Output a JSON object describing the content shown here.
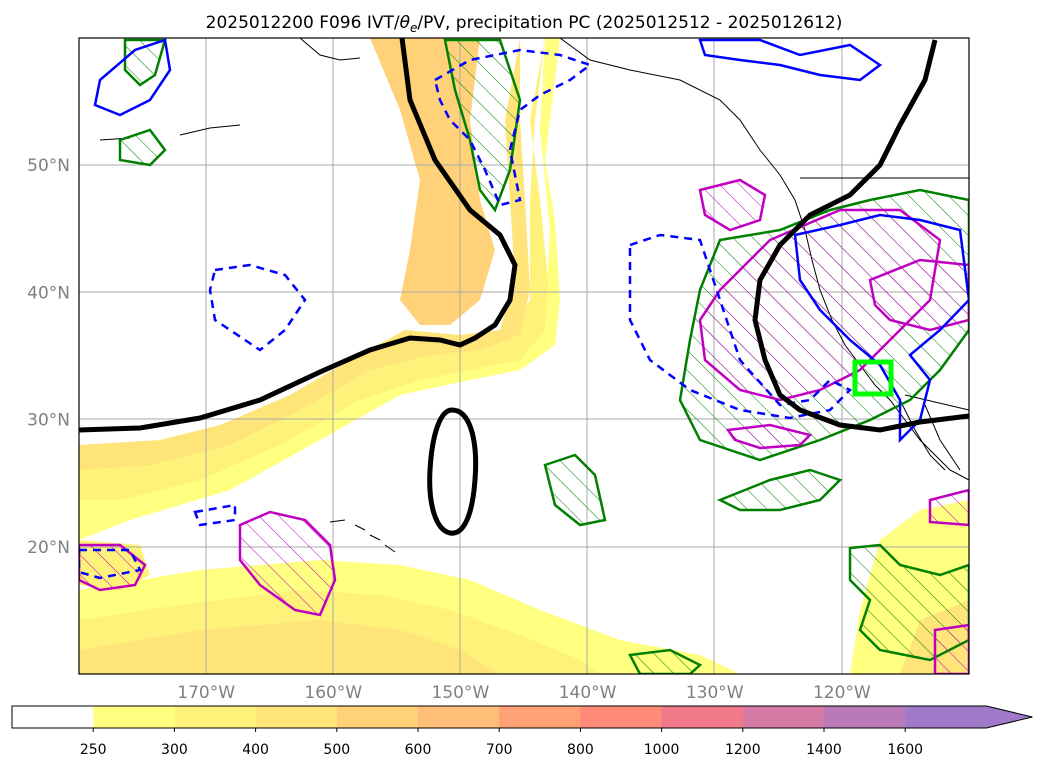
{
  "chart_data": {
    "type": "map",
    "title": "2025012200 F096 IVT/θe/PV, precipitation PC (2025012512 - 2025012612)",
    "title_parts": {
      "prefix": "2025012200 F096 IVT/",
      "theta": "θ",
      "theta_sub": "e",
      "suffix": "/PV, precipitation PC (2025012512 - 2025012612)"
    },
    "projection": "PlateCarree",
    "extent": {
      "lon_min": -180,
      "lon_max": -110,
      "lat_min": 10,
      "lat_max": 60
    },
    "grid": true,
    "lon_ticks": [
      {
        "value": -170,
        "label": "170°W"
      },
      {
        "value": -160,
        "label": "160°W"
      },
      {
        "value": -150,
        "label": "150°W"
      },
      {
        "value": -140,
        "label": "140°W"
      },
      {
        "value": -130,
        "label": "130°W"
      },
      {
        "value": -120,
        "label": "120°W"
      }
    ],
    "lat_ticks": [
      {
        "value": 20,
        "label": "20°N"
      },
      {
        "value": 30,
        "label": "30°N"
      },
      {
        "value": 40,
        "label": "40°N"
      },
      {
        "value": 50,
        "label": "50°N"
      }
    ],
    "colorbar": {
      "levels": [
        250,
        300,
        400,
        500,
        600,
        700,
        800,
        1000,
        1200,
        1400,
        1600
      ],
      "colors": [
        "#ffffff",
        "#ffff80",
        "#fff27a",
        "#ffe47a",
        "#ffd27a",
        "#ffbe78",
        "#ffa075",
        "#ff8a78",
        "#f07a8a",
        "#d67aa6",
        "#ba7ab8",
        "#a07ac8"
      ],
      "extend": "max"
    },
    "contours": {
      "ivt_ridge_color": "#ffd86e",
      "pv_color": "#000000",
      "theta_e_color": "#0000ff",
      "precip_color": "#008000",
      "precip_high_color": "#c000c0",
      "target_box_color": "#00ff00"
    }
  }
}
